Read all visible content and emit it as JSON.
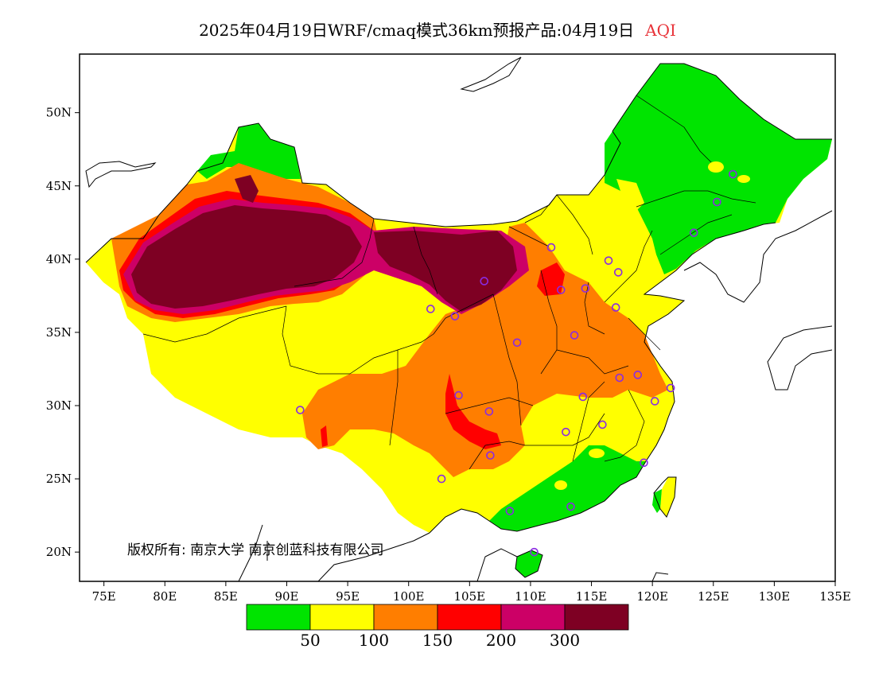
{
  "header": {
    "title": "2025年04月19日WRF/cmaq模式36km预报产品:04月19日",
    "variable": "AQI"
  },
  "map": {
    "lon_range": [
      73,
      135
    ],
    "lat_range": [
      18,
      54
    ],
    "lon_ticks": [
      "75E",
      "80E",
      "85E",
      "90E",
      "95E",
      "100E",
      "105E",
      "110E",
      "115E",
      "120E",
      "125E",
      "130E",
      "135E"
    ],
    "lat_ticks": [
      "50N",
      "45N",
      "40N",
      "35N",
      "30N",
      "25N",
      "20N"
    ],
    "copyright": "版权所有: 南京大学  南京创蓝科技有限公司"
  },
  "legend": {
    "colors": [
      "#00e400",
      "#ffff00",
      "#ff7e00",
      "#ff0000",
      "#cc0066",
      "#7e0023"
    ],
    "labels": [
      "50",
      "100",
      "150",
      "200",
      "300"
    ]
  },
  "stations": [
    [
      126.6,
      45.8
    ],
    [
      125.3,
      43.9
    ],
    [
      123.4,
      41.8
    ],
    [
      111.7,
      40.8
    ],
    [
      116.4,
      39.9
    ],
    [
      117.2,
      39.1
    ],
    [
      114.5,
      38.0
    ],
    [
      112.5,
      37.9
    ],
    [
      106.2,
      38.5
    ],
    [
      101.8,
      36.6
    ],
    [
      103.8,
      36.1
    ],
    [
      117.0,
      36.7
    ],
    [
      113.6,
      34.8
    ],
    [
      108.9,
      34.3
    ],
    [
      117.3,
      31.9
    ],
    [
      118.8,
      32.1
    ],
    [
      121.5,
      31.2
    ],
    [
      120.2,
      30.3
    ],
    [
      114.3,
      30.6
    ],
    [
      104.1,
      30.7
    ],
    [
      106.6,
      29.6
    ],
    [
      112.9,
      28.2
    ],
    [
      115.9,
      28.7
    ],
    [
      119.3,
      26.1
    ],
    [
      106.7,
      26.6
    ],
    [
      102.7,
      25.0
    ],
    [
      113.3,
      23.1
    ],
    [
      108.3,
      22.8
    ],
    [
      110.3,
      20.0
    ],
    [
      91.1,
      29.7
    ]
  ]
}
